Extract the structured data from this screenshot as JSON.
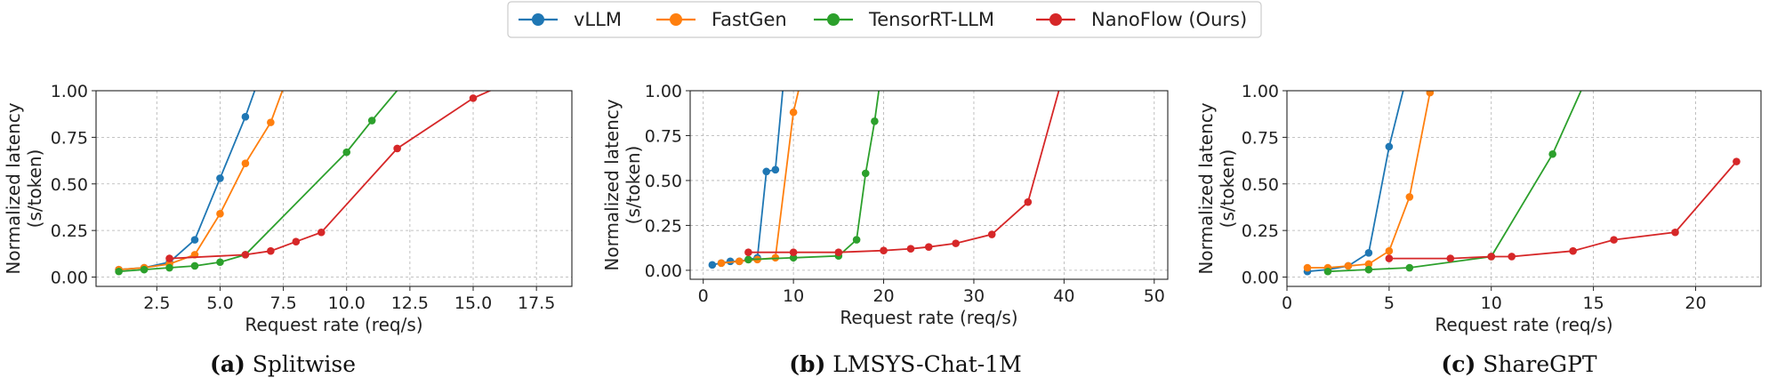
{
  "legend": {
    "entries": [
      {
        "name": "vLLM",
        "color": "#1f77b4"
      },
      {
        "name": "FastGen",
        "color": "#ff7f0e"
      },
      {
        "name": "TensorRT-LLM",
        "color": "#2ca02c"
      },
      {
        "name": "NanoFlow (Ours)",
        "color": "#d62728"
      }
    ],
    "position": "top-center"
  },
  "chart_data": [
    {
      "type": "line",
      "subfigure_label": "(a)",
      "title": "Splitwise",
      "xlabel": "Request rate (req/s)",
      "ylabel_line1": "Normalized latency",
      "ylabel_line2": "(s/token)",
      "xlim": [
        0.1,
        18.9
      ],
      "ylim": [
        -0.05,
        1.0
      ],
      "xticks": [
        2.5,
        5.0,
        7.5,
        10.0,
        12.5,
        15.0,
        17.5
      ],
      "xtick_labels": [
        "2.5",
        "5.0",
        "7.5",
        "10.0",
        "12.5",
        "15.0",
        "17.5"
      ],
      "yticks": [
        0.0,
        0.25,
        0.5,
        0.75,
        1.0
      ],
      "ytick_labels": [
        "0.00",
        "0.25",
        "0.50",
        "0.75",
        "1.00"
      ],
      "grid": true,
      "series": [
        {
          "name": "vLLM",
          "x": [
            1,
            2,
            3,
            4,
            5,
            6,
            6.5
          ],
          "y": [
            0.04,
            0.05,
            0.08,
            0.2,
            0.53,
            0.86,
            1.05
          ],
          "markers": [
            1,
            1,
            1,
            1,
            1,
            1,
            0
          ]
        },
        {
          "name": "FastGen",
          "x": [
            1,
            2,
            3,
            4,
            5,
            6,
            7,
            7.6
          ],
          "y": [
            0.04,
            0.05,
            0.07,
            0.12,
            0.34,
            0.61,
            0.83,
            1.05
          ],
          "markers": [
            1,
            1,
            1,
            1,
            1,
            1,
            1,
            0
          ]
        },
        {
          "name": "TensorRT-LLM",
          "x": [
            1,
            2,
            3,
            4,
            5,
            6,
            10,
            11,
            12.3
          ],
          "y": [
            0.03,
            0.04,
            0.05,
            0.06,
            0.08,
            0.12,
            0.67,
            0.84,
            1.05
          ],
          "markers": [
            1,
            1,
            1,
            1,
            1,
            1,
            1,
            1,
            0
          ]
        },
        {
          "name": "NanoFlow (Ours)",
          "x": [
            3,
            6,
            7,
            8,
            9,
            12,
            15,
            16.5
          ],
          "y": [
            0.1,
            0.12,
            0.14,
            0.19,
            0.24,
            0.69,
            0.96,
            1.05
          ],
          "markers": [
            1,
            1,
            1,
            1,
            1,
            1,
            1,
            0
          ]
        }
      ]
    },
    {
      "type": "line",
      "subfigure_label": "(b)",
      "title": "LMSYS-Chat-1M",
      "xlabel": "Request rate (req/s)",
      "ylabel_line1": "Normalized latency",
      "ylabel_line2": "(s/token)",
      "xlim": [
        -1.45,
        51.5
      ],
      "ylim": [
        -0.05,
        1.0
      ],
      "xticks": [
        0,
        10,
        20,
        30,
        40,
        50
      ],
      "xtick_labels": [
        "0",
        "10",
        "20",
        "30",
        "40",
        "50"
      ],
      "yticks": [
        0.0,
        0.25,
        0.5,
        0.75,
        1.0
      ],
      "ytick_labels": [
        "0.00",
        "0.25",
        "0.50",
        "0.75",
        "1.00"
      ],
      "grid": true,
      "series": [
        {
          "name": "vLLM",
          "x": [
            1,
            2,
            3,
            4,
            5,
            6,
            7,
            8,
            8.9
          ],
          "y": [
            0.03,
            0.04,
            0.05,
            0.05,
            0.06,
            0.07,
            0.55,
            0.56,
            1.05
          ],
          "markers": [
            1,
            1,
            1,
            1,
            1,
            1,
            1,
            1,
            0
          ]
        },
        {
          "name": "FastGen",
          "x": [
            2,
            4,
            6,
            8,
            10,
            10.8
          ],
          "y": [
            0.04,
            0.05,
            0.06,
            0.07,
            0.88,
            1.05
          ],
          "markers": [
            1,
            1,
            1,
            1,
            1,
            0
          ]
        },
        {
          "name": "TensorRT-LLM",
          "x": [
            5,
            10,
            15,
            17,
            18,
            19,
            19.6
          ],
          "y": [
            0.06,
            0.07,
            0.08,
            0.17,
            0.54,
            0.83,
            1.05
          ],
          "markers": [
            1,
            1,
            1,
            1,
            1,
            1,
            0
          ]
        },
        {
          "name": "NanoFlow (Ours)",
          "x": [
            5,
            10,
            15,
            20,
            23,
            25,
            28,
            32,
            36,
            39.7
          ],
          "y": [
            0.1,
            0.1,
            0.1,
            0.11,
            0.12,
            0.13,
            0.15,
            0.2,
            0.38,
            1.05
          ],
          "markers": [
            1,
            1,
            1,
            1,
            1,
            1,
            1,
            1,
            1,
            0
          ]
        }
      ]
    },
    {
      "type": "line",
      "subfigure_label": "(c)",
      "title": "ShareGPT",
      "xlabel": "Request rate (req/s)",
      "ylabel_line1": "Normalized latency",
      "ylabel_line2": "(s/token)",
      "xlim": [
        0,
        23.2
      ],
      "ylim": [
        -0.05,
        1.0
      ],
      "xticks": [
        0,
        5,
        10,
        15,
        20
      ],
      "xtick_labels": [
        "0",
        "5",
        "10",
        "15",
        "20"
      ],
      "yticks": [
        0.0,
        0.25,
        0.5,
        0.75,
        1.0
      ],
      "ytick_labels": [
        "0.00",
        "0.25",
        "0.50",
        "0.75",
        "1.00"
      ],
      "grid": true,
      "series": [
        {
          "name": "vLLM",
          "x": [
            1,
            2,
            3,
            4,
            5,
            5.8
          ],
          "y": [
            0.03,
            0.04,
            0.06,
            0.13,
            0.7,
            1.05
          ],
          "markers": [
            1,
            1,
            1,
            1,
            1,
            0
          ]
        },
        {
          "name": "FastGen",
          "x": [
            1,
            2,
            3,
            4,
            5,
            6,
            7,
            7.1
          ],
          "y": [
            0.05,
            0.05,
            0.06,
            0.07,
            0.14,
            0.43,
            0.99,
            1.05
          ],
          "markers": [
            1,
            1,
            1,
            1,
            1,
            1,
            1,
            0
          ]
        },
        {
          "name": "TensorRT-LLM",
          "x": [
            2,
            4,
            6,
            10,
            13,
            14.6
          ],
          "y": [
            0.03,
            0.04,
            0.05,
            0.11,
            0.66,
            1.05
          ],
          "markers": [
            1,
            1,
            1,
            1,
            1,
            0
          ]
        },
        {
          "name": "NanoFlow (Ours)",
          "x": [
            5,
            8,
            10,
            11,
            14,
            16,
            19,
            22
          ],
          "y": [
            0.1,
            0.1,
            0.11,
            0.11,
            0.14,
            0.2,
            0.24,
            0.62
          ],
          "markers": [
            1,
            1,
            1,
            1,
            1,
            1,
            1,
            1
          ]
        }
      ]
    }
  ]
}
